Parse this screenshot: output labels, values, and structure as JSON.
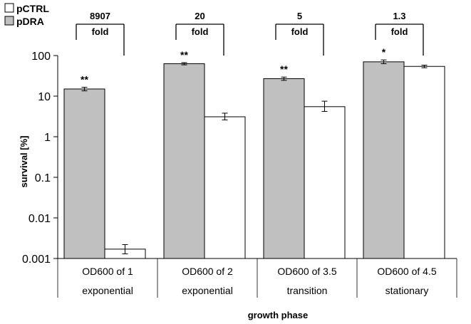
{
  "chart_data": {
    "type": "bar",
    "yscale": "log",
    "ylim": [
      0.001,
      100
    ],
    "yticks": [
      "100",
      "10",
      "1",
      "0.1",
      "0.01",
      "0.001"
    ],
    "ytick_values": [
      100,
      10,
      1,
      0.1,
      0.01,
      0.001
    ],
    "ylabel": "survival [%]",
    "xlabel": "growth phase",
    "categories": [
      {
        "line1": "OD600 of 1",
        "line2": "exponential"
      },
      {
        "line1": "OD600 of 2",
        "line2": "exponential"
      },
      {
        "line1": "OD600 of 3.5",
        "line2": "transition"
      },
      {
        "line1": "OD600 of 4.5",
        "line2": "stationary"
      }
    ],
    "series": [
      {
        "name": "pDRA",
        "color": "#c0c0c0",
        "values": [
          15,
          63,
          27,
          70
        ],
        "err_low": [
          13.5,
          59,
          24.5,
          63
        ],
        "err_high": [
          16.5,
          67,
          29.5,
          78
        ]
      },
      {
        "name": "pCTRL",
        "color": "#ffffff",
        "values": [
          0.0017,
          3.1,
          5.5,
          54
        ],
        "err_low": [
          0.0013,
          2.6,
          4.2,
          50
        ],
        "err_high": [
          0.0022,
          3.8,
          7.5,
          58
        ]
      }
    ],
    "significance": [
      "**",
      "**",
      "**",
      "*"
    ],
    "fold_changes": [
      {
        "value": "8907",
        "label": "fold"
      },
      {
        "value": "20",
        "label": "fold"
      },
      {
        "value": "5",
        "label": "fold"
      },
      {
        "value": "1.3",
        "label": "fold"
      }
    ],
    "legend": [
      {
        "name": "pCTRL",
        "color": "#ffffff"
      },
      {
        "name": "pDRA",
        "color": "#c0c0c0"
      }
    ],
    "legend_position": "top-left",
    "grid": false
  }
}
